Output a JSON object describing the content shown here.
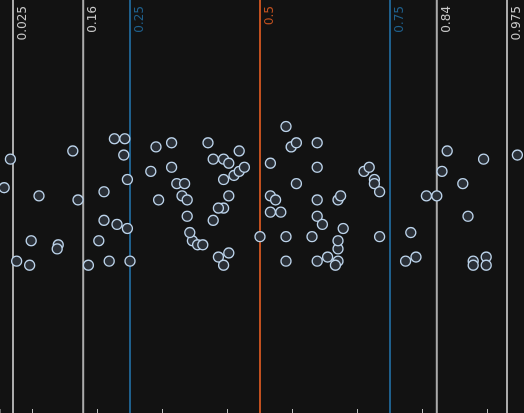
{
  "chart_data": {
    "type": "scatter",
    "title": "",
    "xlabel": "",
    "ylabel": "",
    "grid": false,
    "quantiles": [
      {
        "label": "0.025",
        "value": 0.025,
        "color": "#aaaaaa"
      },
      {
        "label": "0.16",
        "value": 0.16,
        "color": "#aaaaaa"
      },
      {
        "label": "0.25",
        "value": 0.25,
        "color": "#1f5f8b"
      },
      {
        "label": "0.5",
        "value": 0.5,
        "color": "#c0501f"
      },
      {
        "label": "0.75",
        "value": 0.75,
        "color": "#1f5f8b"
      },
      {
        "label": "0.84",
        "value": 0.84,
        "color": "#aaaaaa"
      },
      {
        "label": "0.975",
        "value": 0.975,
        "color": "#aaaaaa"
      }
    ],
    "xlim": [
      0.0,
      1.0
    ],
    "ylim": [
      0.0,
      1.0
    ],
    "points": [
      [
        0.02,
        0.61
      ],
      [
        0.008,
        0.54
      ],
      [
        0.075,
        0.52
      ],
      [
        0.032,
        0.36
      ],
      [
        0.06,
        0.41
      ],
      [
        0.057,
        0.35
      ],
      [
        0.14,
        0.63
      ],
      [
        0.112,
        0.4
      ],
      [
        0.15,
        0.51
      ],
      [
        0.11,
        0.39
      ],
      [
        0.17,
        0.35
      ],
      [
        0.19,
        0.41
      ],
      [
        0.2,
        0.53
      ],
      [
        0.2,
        0.46
      ],
      [
        0.21,
        0.36
      ],
      [
        0.22,
        0.66
      ],
      [
        0.24,
        0.66
      ],
      [
        0.238,
        0.62
      ],
      [
        0.245,
        0.56
      ],
      [
        0.25,
        0.36
      ],
      [
        0.225,
        0.45
      ],
      [
        0.245,
        0.44
      ],
      [
        0.3,
        0.64
      ],
      [
        0.305,
        0.51
      ],
      [
        0.29,
        0.58
      ],
      [
        0.33,
        0.65
      ],
      [
        0.33,
        0.59
      ],
      [
        0.34,
        0.55
      ],
      [
        0.35,
        0.52
      ],
      [
        0.355,
        0.55
      ],
      [
        0.36,
        0.47
      ],
      [
        0.37,
        0.41
      ],
      [
        0.365,
        0.43
      ],
      [
        0.38,
        0.4
      ],
      [
        0.39,
        0.4
      ],
      [
        0.36,
        0.51
      ],
      [
        0.4,
        0.65
      ],
      [
        0.41,
        0.61
      ],
      [
        0.43,
        0.61
      ],
      [
        0.43,
        0.56
      ],
      [
        0.44,
        0.6
      ],
      [
        0.46,
        0.63
      ],
      [
        0.44,
        0.52
      ],
      [
        0.43,
        0.49
      ],
      [
        0.45,
        0.57
      ],
      [
        0.46,
        0.58
      ],
      [
        0.47,
        0.59
      ],
      [
        0.42,
        0.49
      ],
      [
        0.41,
        0.46
      ],
      [
        0.42,
        0.37
      ],
      [
        0.43,
        0.35
      ],
      [
        0.44,
        0.38
      ],
      [
        0.5,
        0.42
      ],
      [
        0.52,
        0.6
      ],
      [
        0.52,
        0.52
      ],
      [
        0.53,
        0.51
      ],
      [
        0.52,
        0.48
      ],
      [
        0.54,
        0.48
      ],
      [
        0.55,
        0.42
      ],
      [
        0.55,
        0.36
      ],
      [
        0.55,
        0.69
      ],
      [
        0.56,
        0.64
      ],
      [
        0.56,
        0.64
      ],
      [
        0.57,
        0.65
      ],
      [
        0.61,
        0.59
      ],
      [
        0.57,
        0.55
      ],
      [
        0.61,
        0.65
      ],
      [
        0.61,
        0.51
      ],
      [
        0.61,
        0.47
      ],
      [
        0.6,
        0.42
      ],
      [
        0.62,
        0.45
      ],
      [
        0.61,
        0.36
      ],
      [
        0.63,
        0.37
      ],
      [
        0.65,
        0.39
      ],
      [
        0.65,
        0.51
      ],
      [
        0.655,
        0.52
      ],
      [
        0.66,
        0.44
      ],
      [
        0.65,
        0.41
      ],
      [
        0.65,
        0.36
      ],
      [
        0.645,
        0.35
      ],
      [
        0.7,
        0.58
      ],
      [
        0.71,
        0.59
      ],
      [
        0.72,
        0.56
      ],
      [
        0.72,
        0.55
      ],
      [
        0.73,
        0.53
      ],
      [
        0.73,
        0.42
      ],
      [
        0.79,
        0.43
      ],
      [
        0.78,
        0.36
      ],
      [
        0.8,
        0.37
      ],
      [
        0.82,
        0.52
      ],
      [
        0.84,
        0.52
      ],
      [
        0.85,
        0.58
      ],
      [
        0.86,
        0.63
      ],
      [
        0.89,
        0.55
      ],
      [
        0.9,
        0.47
      ],
      [
        0.91,
        0.36
      ],
      [
        0.93,
        0.61
      ],
      [
        0.935,
        0.37
      ],
      [
        0.935,
        0.35
      ],
      [
        0.995,
        0.62
      ],
      [
        0.91,
        0.35
      ]
    ],
    "tick_marks": [
      0.0,
      0.0625,
      0.1875,
      0.3125,
      0.4375,
      0.5625,
      0.6875,
      0.8125,
      0.9375
    ]
  }
}
